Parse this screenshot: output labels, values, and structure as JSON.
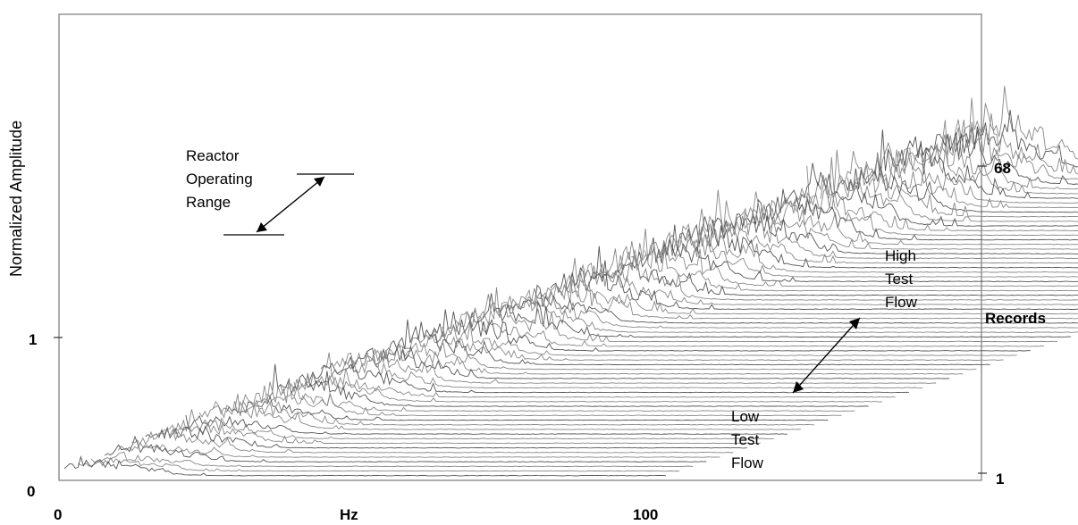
{
  "chart_data": {
    "type": "waterfall",
    "xlabel": "Hz",
    "ylabel": "Normalized Amplitude",
    "zlabel": "Records",
    "x_ticks": [
      "0",
      "100"
    ],
    "y_ticks": [
      "0",
      "1"
    ],
    "z_ticks": [
      "1",
      "68"
    ],
    "records": 68,
    "annotations": {
      "reactor_range": [
        "Reactor",
        "Operating",
        "Range"
      ],
      "high_flow": [
        "High",
        "Test",
        "Flow"
      ],
      "low_flow": [
        "Low",
        "Test",
        "Flow"
      ]
    }
  }
}
